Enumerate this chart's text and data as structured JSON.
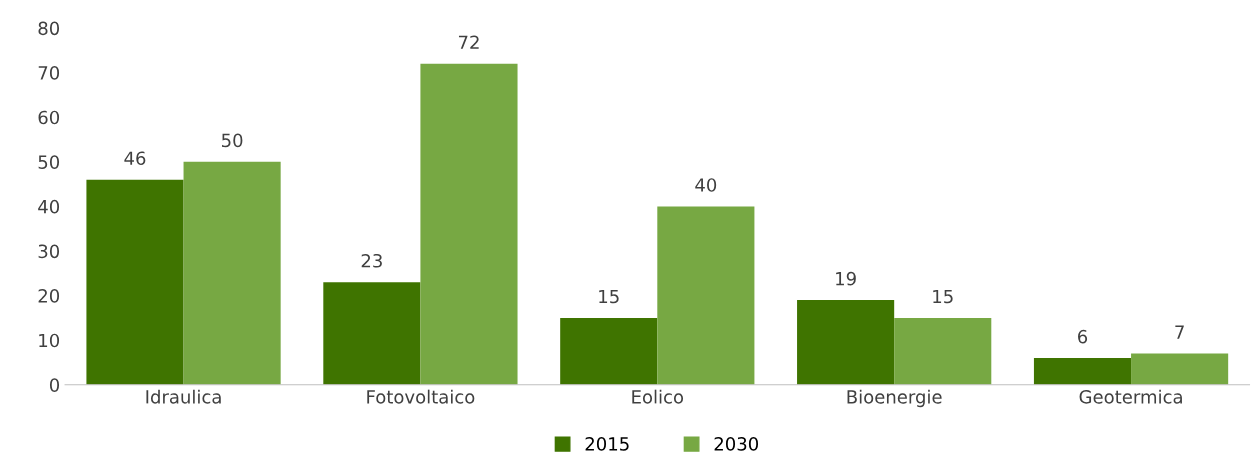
{
  "chart_data": {
    "type": "bar",
    "categories": [
      "Idraulica",
      "Fotovoltaico",
      "Eolico",
      "Bioenergie",
      "Geotermica"
    ],
    "series": [
      {
        "name": "2015",
        "color": "#3f7400",
        "values": [
          46,
          23,
          15,
          19,
          6
        ]
      },
      {
        "name": "2030",
        "color": "#77a843",
        "values": [
          50,
          72,
          40,
          15,
          7
        ]
      }
    ],
    "ylim": [
      0,
      80
    ],
    "yticks": [
      0,
      10,
      20,
      30,
      40,
      50,
      60,
      70,
      80
    ],
    "grid": false,
    "legend": "bottom",
    "data_labels": true
  }
}
